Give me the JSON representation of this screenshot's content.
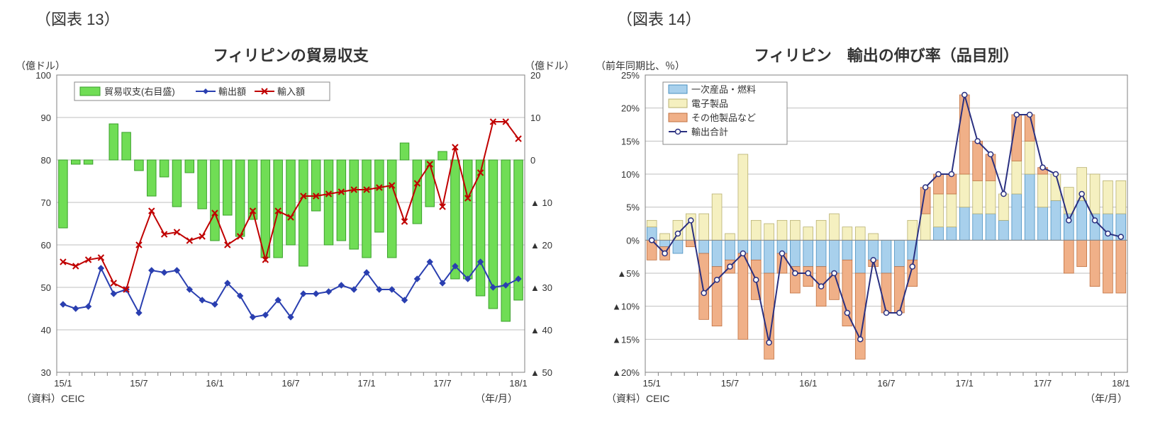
{
  "chart13": {
    "fig_label": "（図表 13）",
    "title": "フィリピンの貿易収支",
    "title_fontsize": 22,
    "y_left_label": "（億ドル）",
    "y_right_label": "（億ドル）",
    "x_label": "（年/月）",
    "source": "（資料）CEIC",
    "label_fontsize": 14,
    "background_color": "#ffffff",
    "plot_border_color": "#808080",
    "grid_color": "#bfbfbf",
    "left_axis": {
      "min": 30,
      "max": 100,
      "ticks": [
        30,
        40,
        50,
        60,
        70,
        80,
        90,
        100
      ]
    },
    "right_axis": {
      "min": -50,
      "max": 20,
      "ticks_display": [
        "▲ 50",
        "▲ 40",
        "▲ 30",
        "▲ 20",
        "▲ 10",
        "0",
        "10",
        "20"
      ],
      "ticks_val": [
        -50,
        -40,
        -30,
        -20,
        -10,
        0,
        10,
        20
      ]
    },
    "x_ticks": [
      "15/1",
      "15/7",
      "16/1",
      "16/7",
      "17/1",
      "17/7",
      "18/1"
    ],
    "x_tick_idx": [
      0,
      6,
      12,
      18,
      24,
      30,
      36
    ],
    "n_points": 37,
    "balance_bar": {
      "color": "#70dd55",
      "border": "#3aa02a",
      "values": [
        -16,
        -1,
        -1,
        0,
        8.5,
        6.5,
        -2.5,
        -8.5,
        -4,
        -11,
        -3,
        -11.5,
        -19,
        -13,
        -18,
        -14,
        -23,
        -23,
        -20,
        -25,
        -12,
        -20,
        -19,
        -21,
        -23,
        -17,
        -23,
        4,
        -15,
        -11,
        2,
        -28,
        -28,
        -32,
        -35,
        -38,
        -33
      ]
    },
    "exports": {
      "color": "#2a3fb0",
      "marker": "diamond",
      "values": [
        46,
        45,
        45.5,
        54.5,
        48.5,
        49.5,
        44,
        54,
        53.5,
        54,
        49.5,
        47,
        46,
        51,
        48,
        43,
        43.5,
        47,
        43,
        48.5,
        48.5,
        49,
        50.5,
        49.5,
        53.5,
        49.5,
        49.5,
        47,
        52,
        56,
        51,
        55,
        52,
        56,
        50,
        50.5,
        52
      ]
    },
    "imports": {
      "color": "#c00000",
      "marker": "x",
      "values": [
        56,
        55,
        56.5,
        57,
        51,
        49.5,
        60,
        68,
        62.5,
        63,
        61,
        62,
        67.5,
        60,
        62,
        68,
        56.5,
        68,
        66.5,
        71.5,
        71.5,
        72,
        72.5,
        73,
        73,
        73.5,
        74,
        65.5,
        74.5,
        79,
        69,
        83,
        71,
        77,
        89,
        89,
        85
      ]
    },
    "legend": {
      "items": [
        {
          "label": "貿易収支(右目盛)",
          "type": "bar",
          "color": "#70dd55",
          "border": "#3aa02a"
        },
        {
          "label": "輸出額",
          "type": "line",
          "color": "#2a3fb0",
          "marker": "diamond"
        },
        {
          "label": "輸入額",
          "type": "line",
          "color": "#c00000",
          "marker": "x"
        }
      ]
    }
  },
  "chart14": {
    "fig_label": "（図表 14）",
    "title": "フィリピン　輸出の伸び率（品目別）",
    "title_fontsize": 22,
    "y_left_label": "（前年同期比、％）",
    "x_label": "（年/月）",
    "source": "（資料）CEIC",
    "label_fontsize": 14,
    "background_color": "#ffffff",
    "plot_border_color": "#808080",
    "grid_color": "#bfbfbf",
    "y_axis": {
      "min": -20,
      "max": 25,
      "ticks_val": [
        -20,
        -15,
        -10,
        -5,
        0,
        5,
        10,
        15,
        20,
        25
      ],
      "ticks_display": [
        "▲20%",
        "▲15%",
        "▲10%",
        "▲5%",
        "0%",
        "5%",
        "10%",
        "15%",
        "20%",
        "25%"
      ]
    },
    "x_ticks": [
      "15/1",
      "15/7",
      "16/1",
      "16/7",
      "17/1",
      "17/7",
      "18/1"
    ],
    "x_tick_idx": [
      0,
      6,
      12,
      18,
      24,
      30,
      36
    ],
    "n_points": 37,
    "primary": {
      "label": "一次産品・燃料",
      "color": "#a8d0ec",
      "border": "#4a90c0",
      "values": [
        2,
        -1,
        -2,
        0,
        -2,
        -4,
        -3,
        -2,
        -3,
        -5,
        -2,
        -4,
        -4,
        -4,
        -5,
        -3,
        -5,
        -3,
        -5,
        -4,
        -3,
        0,
        2,
        2,
        5,
        4,
        4,
        3,
        7,
        10,
        5,
        6,
        4,
        6,
        4,
        4,
        4
      ]
    },
    "electronics": {
      "label": "電子製品",
      "color": "#f5f0c0",
      "border": "#b8b070",
      "values": [
        1,
        1,
        3,
        4,
        4,
        7,
        1,
        13,
        3,
        2.5,
        3,
        3,
        2,
        3,
        4,
        2,
        2,
        1,
        0,
        0,
        3,
        4,
        5,
        5,
        5,
        5,
        5,
        4,
        5,
        5,
        5,
        4,
        4,
        5,
        6,
        5,
        5
      ]
    },
    "other": {
      "label": "その他製品など",
      "color": "#f0b088",
      "border": "#c07040",
      "values": [
        -3,
        -2,
        0,
        -1,
        -10,
        -9,
        -2,
        -13,
        -6,
        -13,
        -3,
        -4,
        -3,
        -6,
        -4,
        -10,
        -13,
        -1,
        -6,
        -7,
        -4,
        4,
        3,
        3,
        12,
        6,
        4,
        0,
        7,
        4,
        1,
        0,
        -5,
        -4,
        -7,
        -8,
        -8
      ]
    },
    "total": {
      "label": "輸出合計",
      "color": "#2a3080",
      "marker": "circle",
      "values": [
        0,
        -2,
        1,
        3,
        -8,
        -6,
        -4,
        -2,
        -6,
        -15.5,
        -2,
        -5,
        -5,
        -7,
        -5,
        -11,
        -15,
        -3,
        -11,
        -11,
        -4,
        8,
        10,
        10,
        22,
        15,
        13,
        7,
        19,
        19,
        11,
        10,
        3,
        7,
        3,
        1,
        0.5
      ]
    },
    "legend": {
      "items": [
        {
          "label": "一次産品・燃料",
          "type": "bar",
          "color": "#a8d0ec",
          "border": "#4a90c0"
        },
        {
          "label": "電子製品",
          "type": "bar",
          "color": "#f5f0c0",
          "border": "#b8b070"
        },
        {
          "label": "その他製品など",
          "type": "bar",
          "color": "#f0b088",
          "border": "#c07040"
        },
        {
          "label": "輸出合計",
          "type": "line",
          "color": "#2a3080",
          "marker": "circle"
        }
      ]
    }
  }
}
